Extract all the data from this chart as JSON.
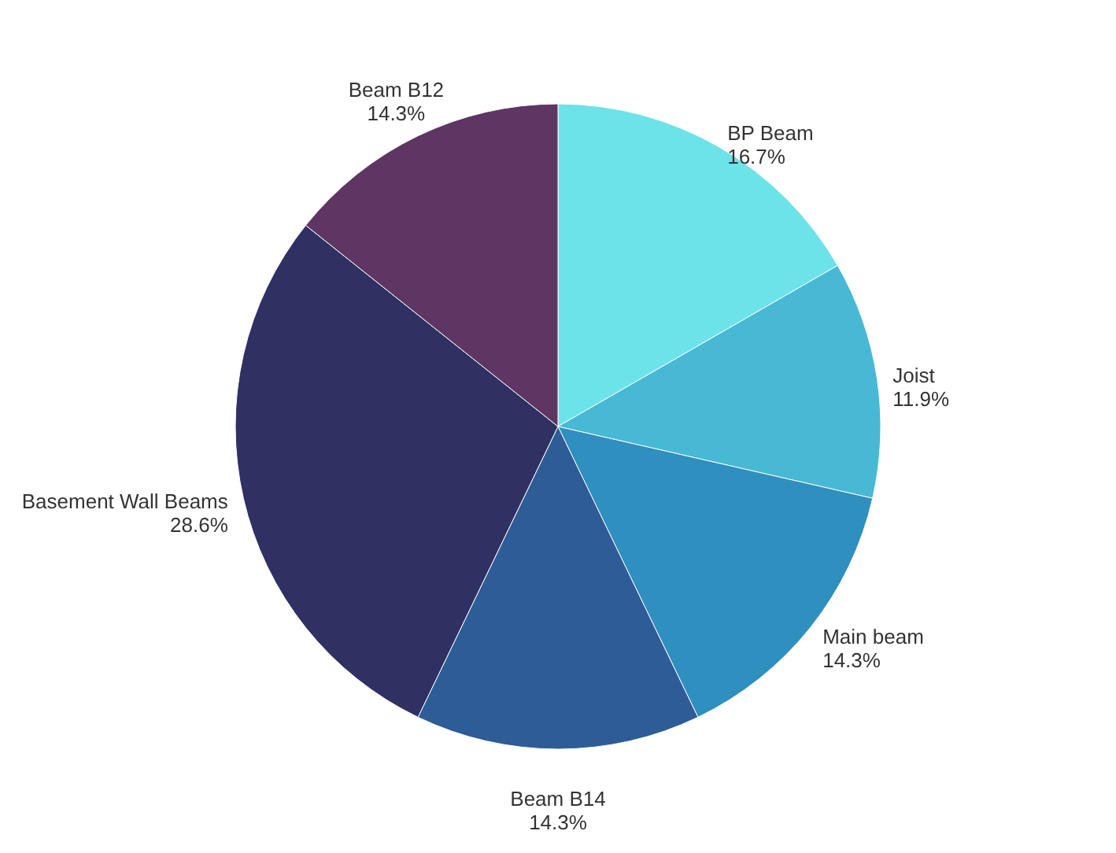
{
  "chart_data": {
    "type": "pie",
    "categories": [
      "BP Beam",
      "Joist",
      "Main beam",
      "Beam B14",
      "Basement Wall Beams",
      "Beam B12"
    ],
    "values": [
      16.7,
      11.9,
      14.3,
      14.3,
      28.6,
      14.3
    ],
    "value_labels": [
      "16.7%",
      "11.9%",
      "14.3%",
      "14.3%",
      "28.6%",
      "14.3%"
    ],
    "colors": [
      "#6ce3e8",
      "#47b9d4",
      "#2f8fbf",
      "#2e5c97",
      "#2f3163",
      "#5e3563"
    ],
    "legend": false
  }
}
